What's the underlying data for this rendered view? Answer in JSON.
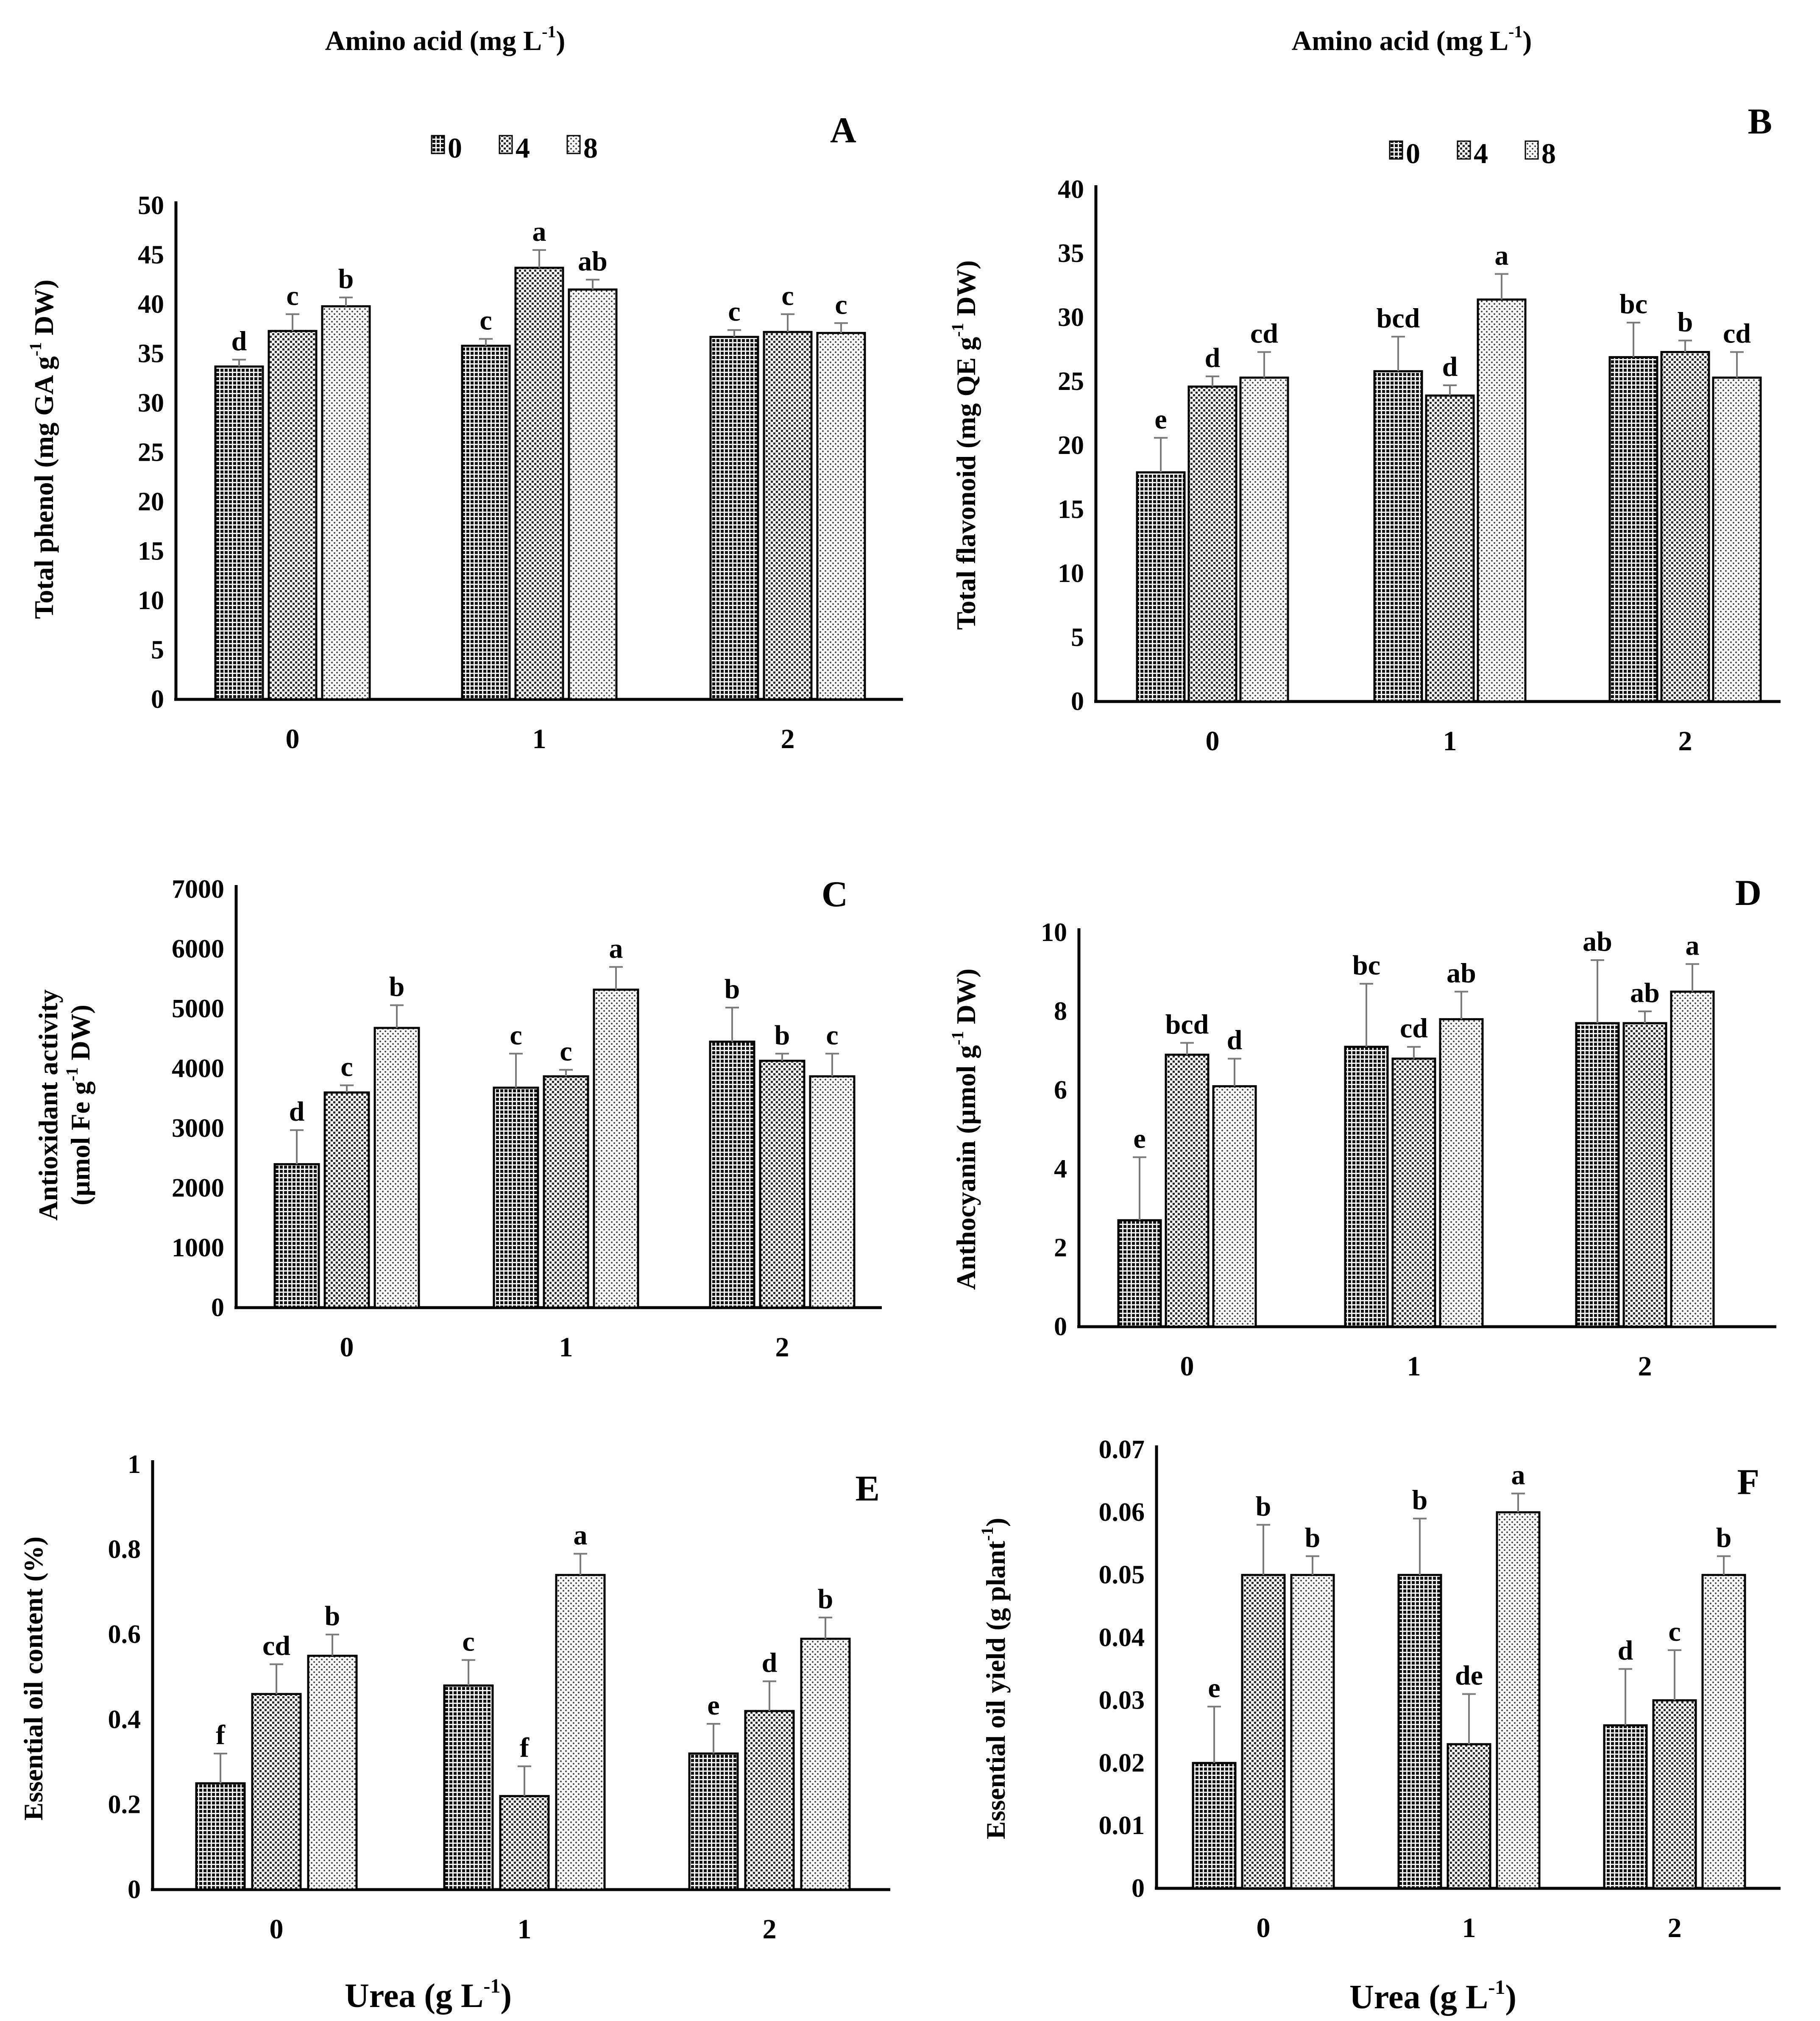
{
  "headers": {
    "left": "Amino acid (mg L",
    "right": "Amino acid (mg L",
    "sup": "-1",
    "close": ")"
  },
  "legend": {
    "items": [
      "0",
      "4",
      "8"
    ]
  },
  "x_title": {
    "text": "Urea (g L",
    "sup": "-1",
    "close": ")"
  },
  "chart_data": [
    {
      "type": "bar",
      "panel": "A",
      "ylabel": {
        "pre": "Total phenol (mg GA g",
        "sup": "-1",
        "post": " DW)"
      },
      "categories": [
        "0",
        "1",
        "2"
      ],
      "ylim": [
        0,
        50
      ],
      "yticks": [
        "0",
        "5",
        "10",
        "15",
        "20",
        "25",
        "30",
        "35",
        "40",
        "45",
        "50"
      ],
      "series": [
        {
          "name": "0",
          "values": [
            33.7,
            35.8,
            36.7
          ],
          "errors": [
            0.7,
            0.7,
            0.7
          ],
          "letters": [
            "d",
            "c",
            "c"
          ]
        },
        {
          "name": "4",
          "values": [
            37.3,
            43.7,
            37.2
          ],
          "errors": [
            1.7,
            1.8,
            1.8
          ],
          "letters": [
            "c",
            "a",
            "c"
          ]
        },
        {
          "name": "8",
          "values": [
            39.8,
            41.5,
            37.1
          ],
          "errors": [
            0.9,
            1.0,
            1.0
          ],
          "letters": [
            "b",
            "ab",
            "c"
          ]
        }
      ]
    },
    {
      "type": "bar",
      "panel": "B",
      "ylabel": {
        "pre": "Total flavonoid (mg QE g",
        "sup": "-1",
        "post": " DW)"
      },
      "categories": [
        "0",
        "1",
        "2"
      ],
      "ylim": [
        0,
        40
      ],
      "yticks": [
        "0",
        "5",
        "10",
        "15",
        "20",
        "25",
        "30",
        "35",
        "40"
      ],
      "series": [
        {
          "name": "0",
          "values": [
            17.9,
            25.8,
            26.9
          ],
          "errors": [
            2.7,
            2.7,
            2.7
          ],
          "letters": [
            "e",
            "bcd",
            "bc"
          ]
        },
        {
          "name": "4",
          "values": [
            24.6,
            23.9,
            27.3
          ],
          "errors": [
            0.8,
            0.8,
            0.9
          ],
          "letters": [
            "d",
            "d",
            "b"
          ]
        },
        {
          "name": "8",
          "values": [
            25.3,
            31.4,
            25.3
          ],
          "errors": [
            2.0,
            2.0,
            2.0
          ],
          "letters": [
            "cd",
            "a",
            "cd"
          ]
        }
      ]
    },
    {
      "type": "bar",
      "panel": "C",
      "ylabel": {
        "pre": "Antioxidant activity",
        "line2": "(µmol Fe g",
        "sup": "-1",
        "post": " DW)"
      },
      "categories": [
        "0",
        "1",
        "2"
      ],
      "ylim": [
        0,
        7000
      ],
      "yticks": [
        "0",
        "1000",
        "2000",
        "3000",
        "4000",
        "5000",
        "6000",
        "7000"
      ],
      "series": [
        {
          "name": "0",
          "values": [
            2400,
            3680,
            4450
          ],
          "errors": [
            570,
            570,
            570
          ],
          "letters": [
            "d",
            "c",
            "b"
          ]
        },
        {
          "name": "4",
          "values": [
            3600,
            3870,
            4130
          ],
          "errors": [
            120,
            110,
            120
          ],
          "letters": [
            "c",
            "c",
            "b"
          ]
        },
        {
          "name": "8",
          "values": [
            4680,
            5320,
            3870
          ],
          "errors": [
            380,
            380,
            380
          ],
          "letters": [
            "b",
            "a",
            "c"
          ]
        }
      ]
    },
    {
      "type": "bar",
      "panel": "D",
      "ylabel": {
        "pre": "Anthocyanin (µmol g",
        "sup": "-1",
        "post": " DW)"
      },
      "categories": [
        "0",
        "1",
        "2"
      ],
      "ylim": [
        0,
        10
      ],
      "yticks": [
        "0",
        "2",
        "4",
        "6",
        "8",
        "10"
      ],
      "series": [
        {
          "name": "0",
          "values": [
            2.7,
            7.1,
            7.7
          ],
          "errors": [
            1.6,
            1.6,
            1.6
          ],
          "letters": [
            "e",
            "bc",
            "ab"
          ]
        },
        {
          "name": "4",
          "values": [
            6.9,
            6.8,
            7.7
          ],
          "errors": [
            0.3,
            0.3,
            0.3
          ],
          "letters": [
            "bcd",
            "cd",
            "ab"
          ]
        },
        {
          "name": "8",
          "values": [
            6.1,
            7.8,
            8.5
          ],
          "errors": [
            0.7,
            0.7,
            0.7
          ],
          "letters": [
            "d",
            "ab",
            "a"
          ]
        }
      ]
    },
    {
      "type": "bar",
      "panel": "E",
      "ylabel": {
        "pre": "Essential oil content (%)"
      },
      "categories": [
        "0",
        "1",
        "2"
      ],
      "ylim": [
        0,
        1
      ],
      "yticks": [
        "0",
        "0.2",
        "0.4",
        "0.6",
        "0.8",
        "1"
      ],
      "series": [
        {
          "name": "0",
          "values": [
            0.25,
            0.48,
            0.32
          ],
          "errors": [
            0.07,
            0.06,
            0.07
          ],
          "letters": [
            "f",
            "c",
            "e"
          ]
        },
        {
          "name": "4",
          "values": [
            0.46,
            0.22,
            0.42
          ],
          "errors": [
            0.07,
            0.07,
            0.07
          ],
          "letters": [
            "cd",
            "f",
            "d"
          ]
        },
        {
          "name": "8",
          "values": [
            0.55,
            0.74,
            0.59
          ],
          "errors": [
            0.05,
            0.05,
            0.05
          ],
          "letters": [
            "b",
            "a",
            "b"
          ]
        }
      ]
    },
    {
      "type": "bar",
      "panel": "F",
      "ylabel": {
        "pre": "Essential oil yield (g plant",
        "sup": "-1",
        "post": ")"
      },
      "categories": [
        "0",
        "1",
        "2"
      ],
      "ylim": [
        0,
        0.07
      ],
      "yticks": [
        "0",
        "0.01",
        "0.02",
        "0.03",
        "0.04",
        "0.05",
        "0.06",
        "0.07"
      ],
      "series": [
        {
          "name": "0",
          "values": [
            0.02,
            0.05,
            0.026
          ],
          "errors": [
            0.009,
            0.009,
            0.009
          ],
          "letters": [
            "e",
            "b",
            "d"
          ]
        },
        {
          "name": "4",
          "values": [
            0.05,
            0.023,
            0.03
          ],
          "errors": [
            0.008,
            0.008,
            0.008
          ],
          "letters": [
            "b",
            "de",
            "c"
          ]
        },
        {
          "name": "8",
          "values": [
            0.05,
            0.06,
            0.05
          ],
          "errors": [
            0.003,
            0.003,
            0.003
          ],
          "letters": [
            "b",
            "a",
            "b"
          ]
        }
      ]
    }
  ]
}
